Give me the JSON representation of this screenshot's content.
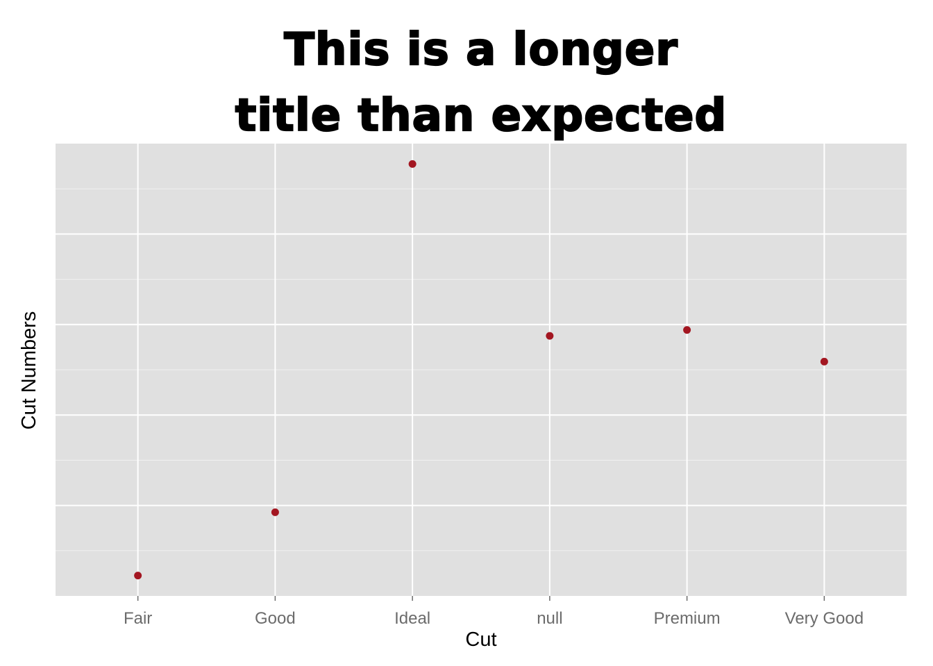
{
  "chart_data": {
    "type": "scatter",
    "title_lines": [
      "This is a longer",
      "title than expected"
    ],
    "xlabel": "Cut",
    "ylabel": "Cut Numbers",
    "categories": [
      "Fair",
      "Good",
      "Ideal",
      "null",
      "Premium",
      "Very Good"
    ],
    "values": [
      0.045,
      0.185,
      0.955,
      0.575,
      0.588,
      0.518
    ],
    "ylim": [
      0,
      1
    ],
    "y_tick_labels_shown": false,
    "grid": true,
    "point_color": "#a31621",
    "panel_color": "#e0e0e0",
    "grid_color": "#ffffff"
  }
}
